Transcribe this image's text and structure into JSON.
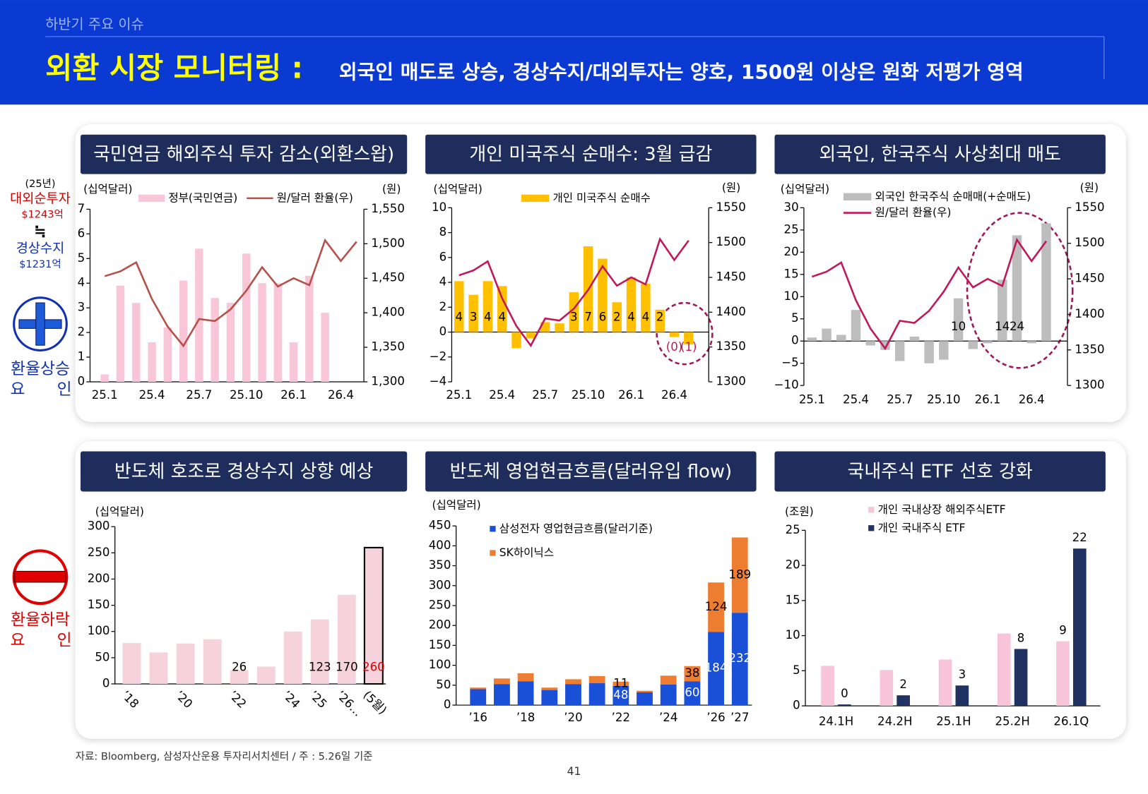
{
  "header": {
    "section": "하반기 주요 이슈",
    "title": "외환 시장 모니터링 :",
    "subtitle": "외국인 매도로 상승, 경상수지/대외투자는 양호, 1500원 이상은 원화 저평가 영역"
  },
  "side": {
    "year": "(25년)",
    "net_investment": "대외순투자",
    "net_investment_amount": "$1243억",
    "approx": "≒",
    "current_account": "경상수지",
    "current_account_amount": "$1231억",
    "rise_factor": "환율상승",
    "rise_factor_2": "요 인",
    "fall_factor": "환율하락",
    "fall_factor_2": "요 인"
  },
  "chart_data": [
    {
      "type": "bar",
      "title": "국민연금 해외주식 투자 감소(외환스왑)",
      "y_label": "(십억달러)",
      "y2_label": "(원)",
      "categories": [
        "25.1",
        null,
        null,
        "25.4",
        null,
        null,
        "25.7",
        null,
        null,
        "25.10",
        null,
        null,
        "26.1",
        null,
        null,
        "26.4",
        null
      ],
      "series": [
        {
          "name": "정부(국민연금)",
          "type": "bar",
          "color": "#f8c6d6",
          "values": [
            0.3,
            3.9,
            3.2,
            1.6,
            2.2,
            4.1,
            5.4,
            3.4,
            3.2,
            5.2,
            4.0,
            4.0,
            1.6,
            4.3,
            2.8,
            null,
            null
          ]
        },
        {
          "name": "원/달러 환율(우)",
          "type": "line",
          "axis": "y2",
          "color": "#b5504a",
          "values": [
            1453,
            1460,
            1473,
            1420,
            1380,
            1352,
            1391,
            1388,
            1405,
            1432,
            1466,
            1438,
            1450,
            1440,
            1505,
            1475,
            1503
          ]
        }
      ],
      "ylim": [
        0,
        7
      ],
      "yticks": [
        0,
        1,
        2,
        3,
        4,
        5,
        6,
        7
      ],
      "y2lim": [
        1300,
        1550
      ],
      "y2ticks": [
        {
          "value": 1300,
          "label": "1,300"
        },
        {
          "value": 1350,
          "label": "1,350"
        },
        {
          "value": 1400,
          "label": "1,400"
        },
        {
          "value": 1450,
          "label": "1,450"
        },
        {
          "value": 1500,
          "label": "1,500"
        },
        {
          "value": 1550,
          "label": "1,550"
        }
      ]
    },
    {
      "type": "bar",
      "title": "개인 미국주식 순매수: 3월 급감",
      "y_label": "(십억달러)",
      "y2_label": "(원)",
      "categories": [
        "25.1",
        null,
        null,
        "25.4",
        null,
        null,
        "25.7",
        null,
        null,
        "25.10",
        null,
        null,
        "26.1",
        null,
        null,
        "26.4",
        null
      ],
      "series": [
        {
          "name": "개인 미국주식 순매수",
          "type": "bar",
          "color": "#ffc000",
          "values": [
            4.1,
            3.0,
            4.1,
            3.7,
            -1.3,
            -0.5,
            0.8,
            0.7,
            3.2,
            6.9,
            5.9,
            2.4,
            4.4,
            3.9,
            1.8,
            -0.4,
            -1.0
          ],
          "value_labels": [
            "4",
            "3",
            "4",
            "4",
            null,
            null,
            null,
            null,
            "3",
            "7",
            "6",
            "2",
            "4",
            "4",
            "2",
            "(0)",
            "(1)"
          ]
        },
        {
          "type": "line",
          "axis": "y2",
          "color": "#c0185a",
          "values": [
            1453,
            1460,
            1473,
            1420,
            1380,
            1352,
            1391,
            1388,
            1405,
            1432,
            1466,
            1438,
            1450,
            1440,
            1505,
            1475,
            1503
          ]
        }
      ],
      "ylim": [
        -4,
        10
      ],
      "yticks": [
        {
          "value": -4,
          "label": "−4"
        },
        {
          "value": -2,
          "label": "−2"
        },
        0,
        2,
        4,
        6,
        8,
        10
      ],
      "y2lim": [
        1300,
        1550
      ],
      "y2ticks": [
        1300,
        1350,
        1400,
        1450,
        1500,
        1550
      ]
    },
    {
      "type": "bar",
      "title": "외국인, 한국주식 사상최대 매도",
      "y_label": "(십억달러)",
      "y2_label": "(원)",
      "categories": [
        "25.1",
        null,
        null,
        "25.4",
        null,
        null,
        "25.7",
        null,
        null,
        "25.10",
        null,
        null,
        "26.1",
        null,
        null,
        "26.4",
        null
      ],
      "series": [
        {
          "name": "외국인 한국주식 순매매(+순매도)",
          "type": "bar",
          "color": "#bdbdbd",
          "values": [
            0.8,
            2.8,
            1.4,
            7.0,
            -1.0,
            -2.0,
            -4.5,
            1.0,
            -5.0,
            -4.2,
            9.6,
            -1.8,
            -0.5,
            13.8,
            23.8,
            -0.5,
            26.5
          ],
          "value_labels": [
            null,
            null,
            null,
            null,
            null,
            null,
            null,
            null,
            null,
            null,
            "10",
            null,
            null,
            "14",
            "24",
            null,
            null
          ]
        },
        {
          "name": "원/달러 환율(우)",
          "type": "line",
          "axis": "y2",
          "color": "#c0185a",
          "values": [
            1453,
            1460,
            1473,
            1420,
            1380,
            1352,
            1391,
            1388,
            1405,
            1432,
            1466,
            1438,
            1450,
            1440,
            1505,
            1475,
            1503
          ]
        }
      ],
      "ylim": [
        -10,
        30
      ],
      "yticks": [
        {
          "value": -10,
          "label": "−10"
        },
        {
          "value": -5,
          "label": "−5"
        },
        0,
        5,
        10,
        15,
        20,
        25,
        30
      ],
      "y2lim": [
        1300,
        1550
      ],
      "y2ticks": [
        1300,
        1350,
        1400,
        1450,
        1500,
        1550
      ]
    },
    {
      "type": "bar",
      "title": "반도체 호조로 경상수지 상향 예상",
      "y_label": "(십억달러)",
      "categories": [
        "’18",
        null,
        "’20",
        null,
        "’22",
        null,
        "’24",
        "’25",
        "’26…",
        "(5월)"
      ],
      "series": [
        {
          "type": "bar",
          "color": "#f6d3dc",
          "values": [
            78,
            60,
            77,
            85,
            26,
            33,
            100,
            123,
            170,
            260
          ],
          "value_labels": [
            null,
            null,
            null,
            null,
            "26",
            null,
            null,
            "123",
            "170",
            "260"
          ]
        }
      ],
      "ylim": [
        0,
        300
      ],
      "yticks": [
        0,
        50,
        100,
        150,
        200,
        250,
        300
      ]
    },
    {
      "type": "bar",
      "stacked": true,
      "title": "반도체 영업현금흐름(달러유입 flow)",
      "y_label": "(십억달러)",
      "categories": [
        "’16",
        null,
        "’18",
        null,
        "’20",
        null,
        "’22",
        null,
        "’24",
        null,
        "’26",
        "’27"
      ],
      "series": [
        {
          "name": "삼성전자 영업현금흐름(달러기준)",
          "type": "bar",
          "color": "#1a4fd8",
          "values": [
            40,
            53,
            60,
            38,
            53,
            55,
            48,
            32,
            52,
            60,
            184,
            232
          ],
          "value_labels": [
            null,
            null,
            null,
            null,
            null,
            null,
            "48",
            null,
            null,
            "60",
            "184",
            "232"
          ]
        },
        {
          "name": "SK하이닉스",
          "type": "bar",
          "color": "#ed7d31",
          "values": [
            4,
            14,
            20,
            6,
            12,
            18,
            11,
            4,
            22,
            38,
            124,
            189
          ],
          "value_labels": [
            null,
            null,
            null,
            null,
            null,
            null,
            "11",
            null,
            null,
            "38",
            "124",
            "189"
          ]
        }
      ],
      "ylim": [
        0,
        450
      ],
      "yticks": [
        0,
        50,
        100,
        150,
        200,
        250,
        300,
        350,
        400,
        450
      ]
    },
    {
      "type": "bar",
      "title": "국내주식 ETF 선호 강화",
      "y_label": "(조원)",
      "categories": [
        "24.1H",
        "24.2H",
        "25.1H",
        "25.2H",
        "26.1Q"
      ],
      "series": [
        {
          "name": "개인 국내상장 해외주식ETF",
          "type": "bar",
          "color": "#f7c4d8",
          "values": [
            5.7,
            5.1,
            6.6,
            10.3,
            9.2
          ],
          "value_labels": [
            null,
            null,
            null,
            null,
            "9"
          ]
        },
        {
          "name": "개인 국내주식 ETF",
          "type": "bar",
          "color": "#1f3262",
          "values": [
            0.2,
            1.5,
            2.9,
            8.1,
            22.4
          ],
          "value_labels": [
            "0",
            "2",
            "3",
            "8",
            "22"
          ]
        }
      ],
      "ylim": [
        0,
        25
      ],
      "yticks": [
        0,
        5,
        10,
        15,
        20,
        25
      ]
    }
  ],
  "footer": {
    "source": "자료: Bloomberg, 삼성자산운용 투자리서치센터 / 주 : 5.26일 기준",
    "page": "41"
  }
}
